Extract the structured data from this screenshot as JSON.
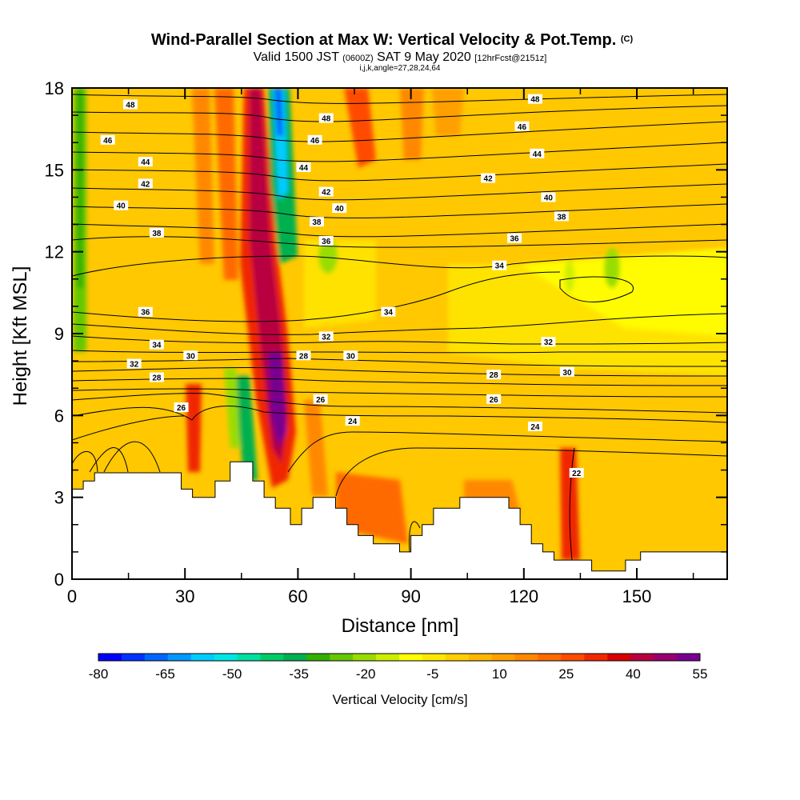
{
  "chart_data": {
    "type": "heatmap",
    "title": "Wind-Parallel Section at Max W: Vertical Velocity & Pot.Temp.",
    "title_mark": "(C)",
    "subtitle_parts": [
      "Valid 1500 JST ",
      "(0600Z)",
      " SAT 9 May 2020 ",
      "[12hrFcst@2151z]"
    ],
    "subtitle2": "i,j,k,angle=27,28,24,64",
    "xlabel": "Distance [nm]",
    "ylabel": "Height [Kft MSL]",
    "xlim": [
      0,
      174
    ],
    "ylim": [
      0,
      18
    ],
    "xticks": [
      "0",
      "30",
      "60",
      "90",
      "120",
      "150"
    ],
    "yticks": [
      "0",
      "3",
      "6",
      "9",
      "12",
      "15",
      "18"
    ],
    "colorbar": {
      "title": "Vertical Velocity [cm/s]",
      "ticks": [
        "-80",
        "-65",
        "-50",
        "-35",
        "-20",
        "-5",
        "10",
        "25",
        "40",
        "55"
      ],
      "colors": [
        "#0000ff",
        "#0033ff",
        "#0066ff",
        "#0099ff",
        "#00ccff",
        "#00e5e5",
        "#00e0a0",
        "#00cc66",
        "#00b050",
        "#33b000",
        "#66c800",
        "#99dd00",
        "#ccee00",
        "#ffff00",
        "#ffe800",
        "#ffd000",
        "#ffb800",
        "#ffa000",
        "#ff8800",
        "#ff6a00",
        "#ff4c00",
        "#f02800",
        "#d80000",
        "#b80040",
        "#980070",
        "#780090"
      ]
    },
    "theta_labels": [
      {
        "text": "48",
        "x": 15.5,
        "y": 17.4
      },
      {
        "text": "48",
        "x": 67.5,
        "y": 16.9
      },
      {
        "text": "48",
        "x": 123,
        "y": 17.6
      },
      {
        "text": "46",
        "x": 9.5,
        "y": 16.1
      },
      {
        "text": "46",
        "x": 64.5,
        "y": 16.1
      },
      {
        "text": "46",
        "x": 119.5,
        "y": 16.6
      },
      {
        "text": "44",
        "x": 19.5,
        "y": 15.3
      },
      {
        "text": "44",
        "x": 61.5,
        "y": 15.1
      },
      {
        "text": "44",
        "x": 123.5,
        "y": 15.6
      },
      {
        "text": "42",
        "x": 19.5,
        "y": 14.5
      },
      {
        "text": "42",
        "x": 67.5,
        "y": 14.2
      },
      {
        "text": "42",
        "x": 110.5,
        "y": 14.7
      },
      {
        "text": "40",
        "x": 13,
        "y": 13.7
      },
      {
        "text": "40",
        "x": 71,
        "y": 13.6
      },
      {
        "text": "40",
        "x": 126.5,
        "y": 14.0
      },
      {
        "text": "38",
        "x": 22.5,
        "y": 12.7
      },
      {
        "text": "38",
        "x": 65,
        "y": 13.1
      },
      {
        "text": "38",
        "x": 130,
        "y": 13.3
      },
      {
        "text": "36",
        "x": 67.5,
        "y": 12.4
      },
      {
        "text": "36",
        "x": 117.5,
        "y": 12.5
      },
      {
        "text": "36",
        "x": 19.5,
        "y": 9.8
      },
      {
        "text": "34",
        "x": 113.5,
        "y": 11.5
      },
      {
        "text": "34",
        "x": 84,
        "y": 9.8
      },
      {
        "text": "34",
        "x": 22.5,
        "y": 8.6
      },
      {
        "text": "32",
        "x": 67.5,
        "y": 8.9
      },
      {
        "text": "32",
        "x": 126.5,
        "y": 8.7
      },
      {
        "text": "32",
        "x": 16.5,
        "y": 7.9
      },
      {
        "text": "30",
        "x": 31.5,
        "y": 8.2
      },
      {
        "text": "30",
        "x": 74,
        "y": 8.2
      },
      {
        "text": "30",
        "x": 131.5,
        "y": 7.6
      },
      {
        "text": "28",
        "x": 61.5,
        "y": 8.2
      },
      {
        "text": "28",
        "x": 22.5,
        "y": 7.4
      },
      {
        "text": "28",
        "x": 112,
        "y": 7.5
      },
      {
        "text": "26",
        "x": 29,
        "y": 6.3
      },
      {
        "text": "26",
        "x": 66,
        "y": 6.6
      },
      {
        "text": "26",
        "x": 112,
        "y": 6.6
      },
      {
        "text": "24",
        "x": 74.5,
        "y": 5.8
      },
      {
        "text": "24",
        "x": 123,
        "y": 5.6
      },
      {
        "text": "22",
        "x": 134,
        "y": 3.9
      }
    ]
  }
}
